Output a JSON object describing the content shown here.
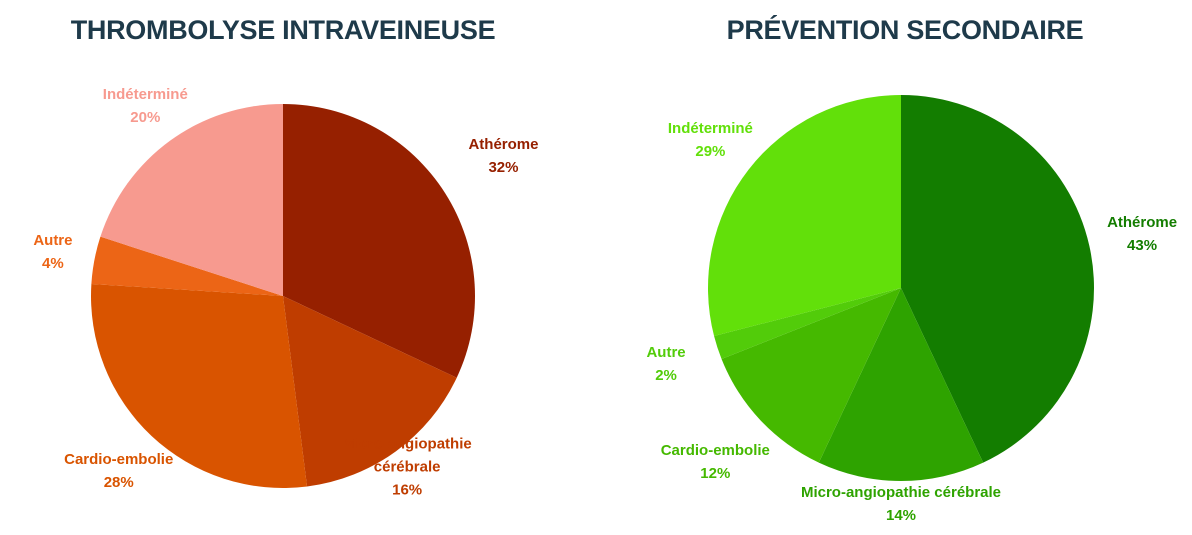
{
  "chart_data": [
    {
      "type": "pie",
      "title": "THROMBOLYSE INTRAVEINEUSE",
      "categories": [
        "Athérome",
        "Micro-angiopathie cérébrale",
        "Cardio-embolie",
        "Autre",
        "Indéterminé"
      ],
      "values": [
        32,
        16,
        28,
        4,
        20
      ],
      "value_labels": [
        "32%",
        "16%",
        "28%",
        "4%",
        "20%"
      ],
      "colors": [
        "#962000",
        "#bf3d00",
        "#d95400",
        "#ec6516",
        "#f79a8f"
      ]
    },
    {
      "type": "pie",
      "title": "PRÉVENTION SECONDAIRE",
      "categories": [
        "Athérome",
        "Micro-angiopathie cérébrale",
        "Cardio-embolie",
        "Autre",
        "Indéterminé"
      ],
      "values": [
        43,
        14,
        12,
        2,
        29
      ],
      "value_labels": [
        "43%",
        "14%",
        "12%",
        "2%",
        "29%"
      ],
      "colors": [
        "#137d00",
        "#2ea300",
        "#45b900",
        "#52cc0a",
        "#62e00a"
      ]
    }
  ]
}
